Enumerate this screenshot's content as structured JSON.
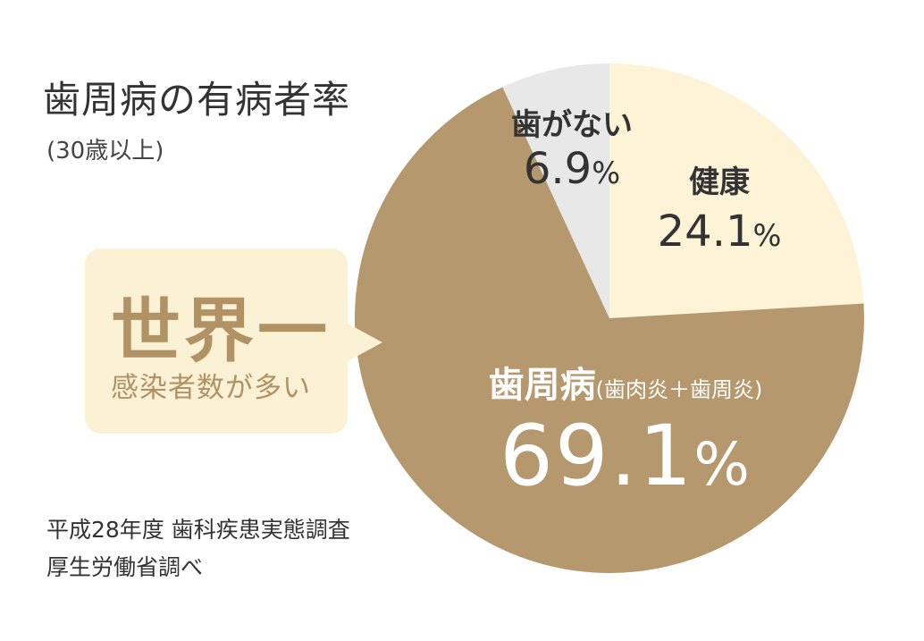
{
  "title": "歯周病の有病者率",
  "subtitle": "(30歳以上)",
  "callout": {
    "main": "世界一",
    "sub": "感染者数が多い"
  },
  "source": {
    "line1": "平成28年度 歯科疾患実態調査",
    "line2": "厚生労働省調べ"
  },
  "colors": {
    "periodontal": "#b5986d",
    "healthy": "#fdf3d6",
    "no_teeth": "#e8e8e8",
    "callout": "#fbf1d4",
    "callout_text": "#b09264"
  },
  "chart_data": {
    "type": "pie",
    "slices": [
      {
        "label": "健康",
        "value": 24.1,
        "value_text": "24.1",
        "unit": "%"
      },
      {
        "label": "歯周病",
        "note": "(歯肉炎＋歯周炎)",
        "value": 69.1,
        "value_text": "69.1",
        "unit": "%"
      },
      {
        "label": "歯がない",
        "value": 6.9,
        "value_text": "6.9",
        "unit": "%"
      }
    ]
  }
}
